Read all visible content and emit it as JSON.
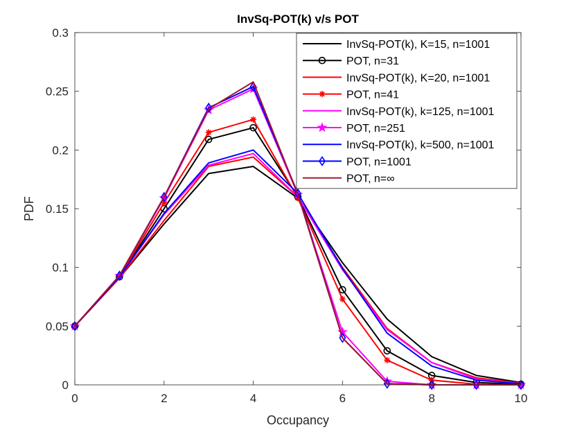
{
  "chart_data": {
    "type": "line",
    "title": "InvSq-POT(k) v/s POT",
    "xlabel": "Occupancy",
    "ylabel": "PDF",
    "xlim": [
      0,
      10
    ],
    "ylim": [
      0,
      0.3
    ],
    "xticks": [
      0,
      2,
      4,
      6,
      8,
      10
    ],
    "yticks": [
      0,
      0.05,
      0.1,
      0.15,
      0.2,
      0.25,
      0.3
    ],
    "ytick_labels": [
      "0",
      "0.05",
      "0.1",
      "0.15",
      "0.2",
      "0.25",
      "0.3"
    ],
    "legend_position": "top-right",
    "x": [
      0,
      1,
      2,
      3,
      4,
      5,
      6,
      7,
      8,
      9,
      10
    ],
    "series": [
      {
        "name": "InvSq-POT(k), K=15, n=1001",
        "color": "#000000",
        "marker": "none",
        "values": [
          0.05,
          0.091,
          0.137,
          0.18,
          0.186,
          0.159,
          0.104,
          0.056,
          0.024,
          0.008,
          0.002
        ]
      },
      {
        "name": "POT, n=31",
        "color": "#000000",
        "marker": "circle",
        "values": [
          0.05,
          0.092,
          0.15,
          0.209,
          0.219,
          0.16,
          0.081,
          0.029,
          0.008,
          0.002,
          0.0005
        ]
      },
      {
        "name": "InvSq-POT(k), K=20, n=1001",
        "color": "#ff0000",
        "marker": "none",
        "values": [
          0.05,
          0.091,
          0.14,
          0.186,
          0.194,
          0.16,
          0.1,
          0.048,
          0.019,
          0.006,
          0.0015
        ]
      },
      {
        "name": "POT, n=41",
        "color": "#ff0000",
        "marker": "asterisk",
        "values": [
          0.05,
          0.092,
          0.155,
          0.215,
          0.226,
          0.159,
          0.073,
          0.021,
          0.004,
          0.0005,
          0.0
        ]
      },
      {
        "name": "InvSq-POT(k), k=125, n=1001",
        "color": "#ff00ff",
        "marker": "none",
        "values": [
          0.05,
          0.092,
          0.145,
          0.187,
          0.197,
          0.16,
          0.098,
          0.047,
          0.019,
          0.005,
          0.001
        ]
      },
      {
        "name": "POT, n=251",
        "color": "#ff00ff",
        "marker": "star",
        "values": [
          0.05,
          0.093,
          0.159,
          0.234,
          0.252,
          0.162,
          0.045,
          0.003,
          0.0,
          0.0,
          0.0
        ]
      },
      {
        "name": "InvSq-POT(k), k=500, n=1001",
        "color": "#0000ff",
        "marker": "none",
        "values": [
          0.05,
          0.092,
          0.146,
          0.189,
          0.2,
          0.163,
          0.099,
          0.044,
          0.016,
          0.004,
          0.001
        ]
      },
      {
        "name": "POT, n=1001",
        "color": "#0000ff",
        "marker": "diamond",
        "values": [
          0.05,
          0.093,
          0.16,
          0.236,
          0.254,
          0.163,
          0.04,
          0.001,
          0.0,
          0.0,
          0.0
        ]
      },
      {
        "name": "POT, n=∞",
        "color": "#a2142f",
        "marker": "none",
        "values": [
          0.05,
          0.093,
          0.16,
          0.235,
          0.258,
          0.162,
          0.04,
          0.001,
          0.0,
          0.0,
          0.0
        ]
      }
    ]
  }
}
